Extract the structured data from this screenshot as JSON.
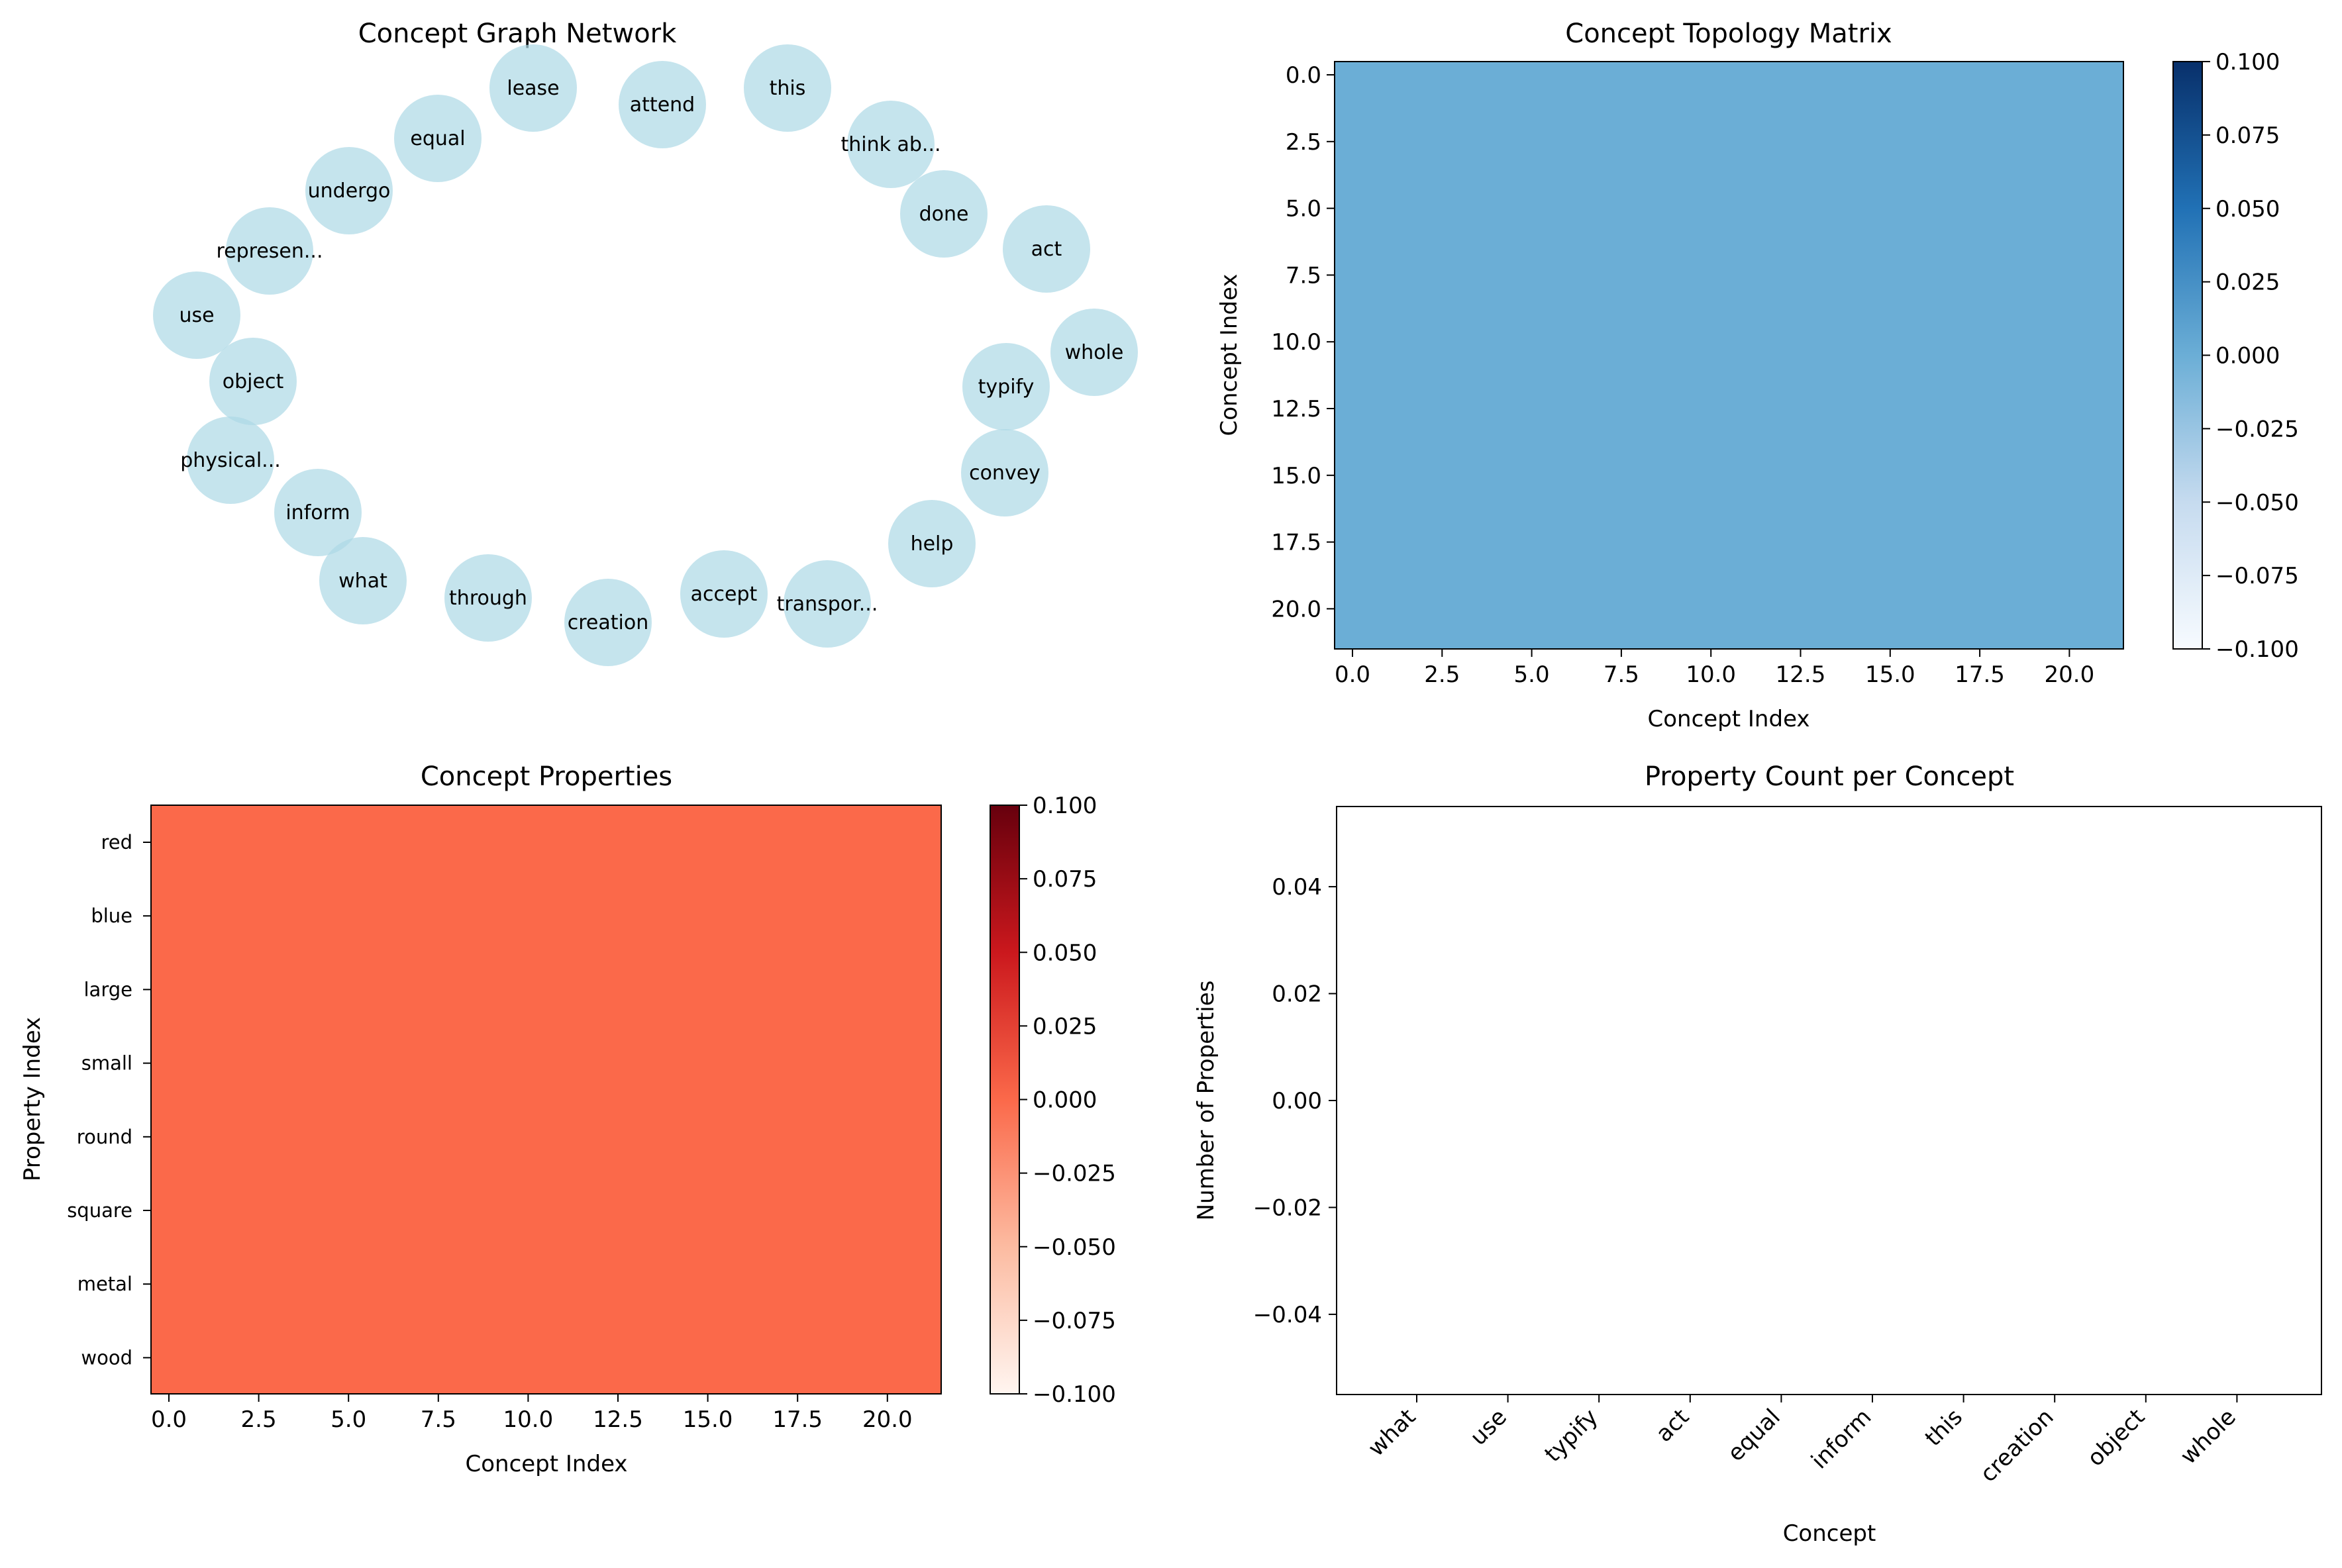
{
  "chart_data": [
    {
      "type": "network",
      "title": "Concept Graph Network",
      "node_color": "#add8e6",
      "nodes": [
        "lease",
        "attend",
        "this",
        "equal",
        "think ab...",
        "undergo",
        "done",
        "act",
        "represen...",
        "use",
        "whole",
        "object",
        "typify",
        "physical...",
        "convey",
        "inform",
        "help",
        "what",
        "through",
        "accept",
        "transpor...",
        "creation"
      ],
      "edges": []
    },
    {
      "type": "heatmap",
      "title": "Concept Topology Matrix",
      "xlabel": "Concept Index",
      "ylabel": "Concept Index",
      "size": 22,
      "value": 0.0,
      "colormap": "Blues",
      "cell_color": "#6baed6",
      "x_ticks": [
        "0.0",
        "2.5",
        "5.0",
        "7.5",
        "10.0",
        "12.5",
        "15.0",
        "17.5",
        "20.0"
      ],
      "y_ticks": [
        "0.0",
        "2.5",
        "5.0",
        "7.5",
        "10.0",
        "12.5",
        "15.0",
        "17.5",
        "20.0"
      ],
      "colorbar": {
        "vmin": -0.1,
        "vmax": 0.1,
        "colors": [
          "#f7fbff",
          "#c6dbef",
          "#6baed6",
          "#2171b5",
          "#08306b"
        ],
        "ticks": [
          "0.100",
          "0.075",
          "0.050",
          "0.025",
          "0.000",
          "−0.025",
          "−0.050",
          "−0.075",
          "−0.100"
        ]
      }
    },
    {
      "type": "heatmap",
      "title": "Concept Properties",
      "xlabel": "Concept Index",
      "ylabel": "Property Index",
      "value": 0.0,
      "colormap": "Reds",
      "cell_color": "#fb694a",
      "x_ticks": [
        "0.0",
        "2.5",
        "5.0",
        "7.5",
        "10.0",
        "12.5",
        "15.0",
        "17.5",
        "20.0"
      ],
      "y_ticks": [
        "red",
        "blue",
        "large",
        "small",
        "round",
        "square",
        "metal",
        "wood"
      ],
      "colorbar": {
        "vmin": -0.1,
        "vmax": 0.1,
        "colors": [
          "#fff5f0",
          "#fcbba1",
          "#fb694a",
          "#cb181d",
          "#67000d"
        ],
        "ticks": [
          "0.100",
          "0.075",
          "0.050",
          "0.025",
          "0.000",
          "−0.025",
          "−0.050",
          "−0.075",
          "−0.100"
        ]
      }
    },
    {
      "type": "bar",
      "title": "Property Count per Concept",
      "xlabel": "Concept",
      "ylabel": "Number of Properties",
      "categories": [
        "what",
        "use",
        "typify",
        "act",
        "equal",
        "inform",
        "this",
        "creation",
        "object",
        "whole"
      ],
      "values": [
        0,
        0,
        0,
        0,
        0,
        0,
        0,
        0,
        0,
        0
      ],
      "ylim": [
        -0.055,
        0.055
      ],
      "y_ticks": [
        "0.04",
        "0.02",
        "0.00",
        "−0.02",
        "−0.04"
      ]
    }
  ]
}
